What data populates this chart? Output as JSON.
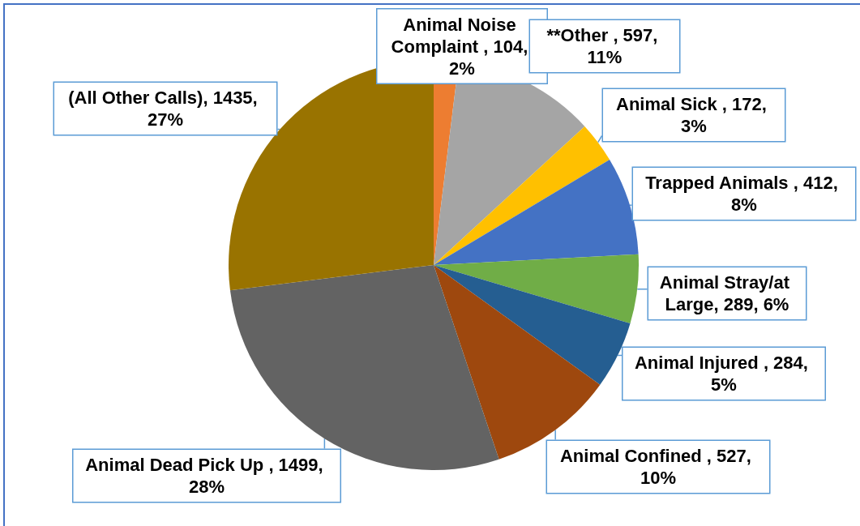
{
  "chart_data": {
    "type": "pie",
    "categories": [
      "Animal Noise Complaint ",
      "**Other ",
      "Animal Sick ",
      "Trapped Animals ",
      "Animal Stray/at Large",
      "Animal Injured ",
      "Animal Confined ",
      "Animal Dead Pick Up ",
      "(All Other Calls)"
    ],
    "values": [
      104,
      597,
      172,
      412,
      289,
      284,
      527,
      1499,
      1435
    ],
    "colors": [
      "#ed7d31",
      "#a5a5a5",
      "#ffc000",
      "#4472c4",
      "#70ad47",
      "#255e91",
      "#9e480e",
      "#636363",
      "#997300"
    ],
    "value_labels": [
      "104, 2%",
      "597, 11%",
      "172, 3%",
      "412, 8%",
      "289, 6%",
      "284, 5%",
      "527, 10%",
      "1499, 28%",
      "1435, 27%"
    ]
  }
}
